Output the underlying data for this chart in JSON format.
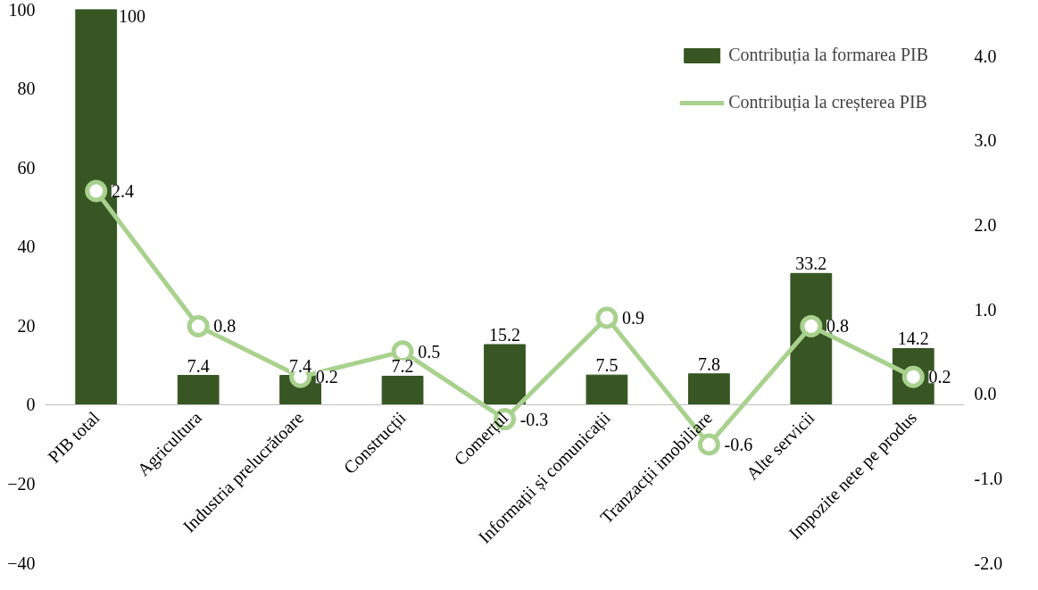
{
  "chart_data": {
    "type": "bar",
    "categories": [
      "PIB total",
      "Agricultura",
      "Industria prelucrătoare",
      "Construcții",
      "Comerțul",
      "Informații și comunicații",
      "Tranzacții imobiliare",
      "Alte servicii",
      "Impozite nete pe produs"
    ],
    "series": [
      {
        "name": "Contribuția la formarea PIB",
        "color": "#375623",
        "values": [
          100,
          7.4,
          7.4,
          7.2,
          15.2,
          7.5,
          7.8,
          33.2,
          14.2
        ]
      },
      {
        "name": "Contribuția la creșterea PIB",
        "color": "#a9d18e",
        "type": "line",
        "axis": "y2",
        "values": [
          2.4,
          0.8,
          0.2,
          0.5,
          -0.3,
          0.9,
          -0.6,
          0.8,
          0.2
        ]
      }
    ],
    "ylim": [
      -40,
      100
    ],
    "yticks": [
      -40,
      -20,
      0,
      20,
      40,
      60,
      80,
      100
    ],
    "y2lim": [
      -2,
      4.55
    ],
    "y2ticks": [
      {
        "value": -2,
        "label": "-2.0"
      },
      {
        "value": -1,
        "label": "-1.0"
      },
      {
        "value": 0,
        "label": "0.0"
      },
      {
        "value": 1,
        "label": "1.0"
      },
      {
        "value": 2,
        "label": "2.0"
      },
      {
        "value": 3,
        "label": "3.0"
      },
      {
        "value": 4,
        "label": "4.0"
      }
    ],
    "data_labels": true,
    "legend": "top right",
    "grid": false,
    "marker": "circle",
    "line_style": "solid"
  }
}
